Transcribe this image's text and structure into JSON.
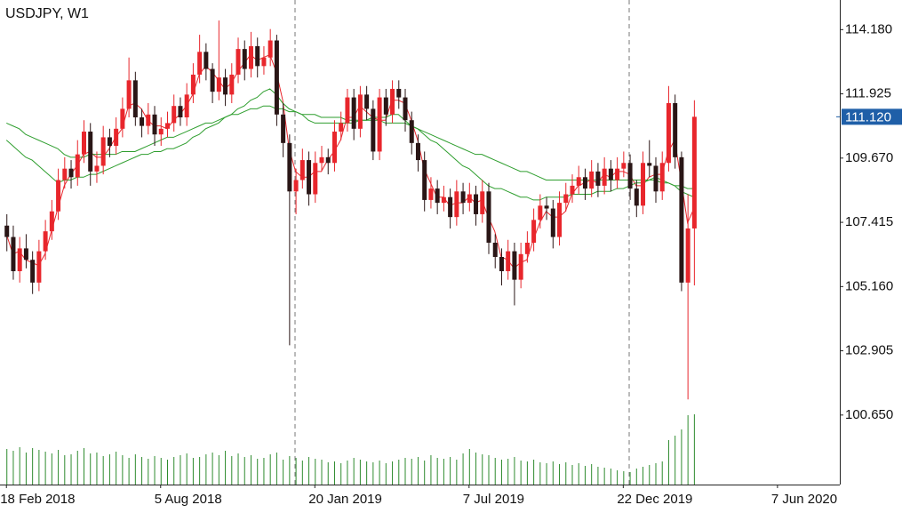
{
  "chart_data": {
    "type": "candlestick",
    "title": "USDJPY, W1",
    "xlim": [
      -1,
      129.7
    ],
    "xticks": [
      {
        "value": 0,
        "label": "18 Feb 2018"
      },
      {
        "value": 24,
        "label": "5 Aug 2018"
      },
      {
        "value": 48,
        "label": "20 Jan 2019"
      },
      {
        "value": 72,
        "label": "7 Jul 2019"
      },
      {
        "value": 96,
        "label": "22 Dec 2019"
      },
      {
        "value": 120,
        "label": "7 Jun 2020"
      }
    ],
    "ylim": [
      98.21,
      115.22
    ],
    "yticks": [
      {
        "value": 114.18,
        "label": "114.180"
      },
      111.925,
      {
        "value": 109.67,
        "label": "109.670"
      },
      107.415,
      {
        "value": 105.16,
        "label": "105.160"
      },
      102.905,
      {
        "value": 100.65,
        "label": "100.650"
      }
    ],
    "up_color": "#e8262c",
    "down_color": "#2a1616",
    "open": [
      107.3,
      106.9,
      105.7,
      106.5,
      106.1,
      105.3,
      106.4,
      107.1,
      107.8,
      108.9,
      109.3,
      109.0,
      109.8,
      110.6,
      109.2,
      109.4,
      110.4,
      110.1,
      110.7,
      111.4,
      112.4,
      111.1,
      110.8,
      111.2,
      110.5,
      110.7,
      110.9,
      111.5,
      111.1,
      111.9,
      112.6,
      113.4,
      112.8,
      112.0,
      112.5,
      111.9,
      112.6,
      113.5,
      112.8,
      113.6,
      112.9,
      113.2,
      113.8,
      111.2,
      110.2,
      108.5,
      108.9,
      109.6,
      108.4,
      109.5,
      109.7,
      109.5,
      110.6,
      110.9,
      111.8,
      110.7,
      111.9,
      111.4,
      109.9,
      111.8,
      111.2,
      112.1,
      111.8,
      111.0,
      110.2,
      109.6,
      108.2,
      108.6,
      108.1,
      108.3,
      107.6,
      108.5,
      108.1,
      108.4,
      107.7,
      108.5,
      106.7,
      106.2,
      105.7,
      106.4,
      105.4,
      106.3,
      106.7,
      107.5,
      108.0,
      107.9,
      106.9,
      108.1,
      108.4,
      108.7,
      109.0,
      108.6,
      109.2,
      108.7,
      109.3,
      108.9,
      109.3,
      109.5,
      108.6,
      108.0,
      109.5,
      109.4,
      108.5,
      109.5,
      111.6,
      109.7,
      105.3,
      107.2
    ],
    "high": [
      107.7,
      107.3,
      106.9,
      107.0,
      106.4,
      106.8,
      107.5,
      108.2,
      109.3,
      109.7,
      109.6,
      110.3,
      111.0,
      110.9,
      109.9,
      110.8,
      110.7,
      111.1,
      111.8,
      113.2,
      112.7,
      111.4,
      111.6,
      111.5,
      111.1,
      111.3,
      111.9,
      111.8,
      112.3,
      113.0,
      114.0,
      113.7,
      113.0,
      114.5,
      112.8,
      113.0,
      113.9,
      113.8,
      114.1,
      113.9,
      113.6,
      114.2,
      114.0,
      111.6,
      110.5,
      109.3,
      110.0,
      109.9,
      109.9,
      110.1,
      110.0,
      111.0,
      111.3,
      112.1,
      112.1,
      112.2,
      112.2,
      111.7,
      112.1,
      112.1,
      112.4,
      112.4,
      112.1,
      111.3,
      110.5,
      109.9,
      109.0,
      108.9,
      108.7,
      108.6,
      108.9,
      108.8,
      108.8,
      108.7,
      108.9,
      108.8,
      107.0,
      106.5,
      106.8,
      106.7,
      106.7,
      107.1,
      107.9,
      108.4,
      108.3,
      108.2,
      108.5,
      108.8,
      109.1,
      109.4,
      109.3,
      109.6,
      109.5,
      109.7,
      109.6,
      109.7,
      109.9,
      109.8,
      108.9,
      109.9,
      110.3,
      109.7,
      109.9,
      112.2,
      111.9,
      109.9,
      108.4,
      111.7
    ],
    "low": [
      106.4,
      105.4,
      105.3,
      105.8,
      104.9,
      105.0,
      106.1,
      106.8,
      107.5,
      108.6,
      108.6,
      108.7,
      109.5,
      108.7,
      108.8,
      109.1,
      109.7,
      109.8,
      110.4,
      111.1,
      110.8,
      110.4,
      110.5,
      110.1,
      110.1,
      110.4,
      110.6,
      110.8,
      110.8,
      111.6,
      112.3,
      112.4,
      111.6,
      111.7,
      111.5,
      111.6,
      112.3,
      112.4,
      112.5,
      112.5,
      112.6,
      112.9,
      110.8,
      109.7,
      103.1,
      107.7,
      108.6,
      108.0,
      108.1,
      109.2,
      109.1,
      109.2,
      110.3,
      110.6,
      110.3,
      110.4,
      111.0,
      109.6,
      109.6,
      110.8,
      110.9,
      111.4,
      110.6,
      109.8,
      109.2,
      107.8,
      107.9,
      107.7,
      107.8,
      107.2,
      107.3,
      107.7,
      107.8,
      107.3,
      107.4,
      106.3,
      105.8,
      105.2,
      105.4,
      104.5,
      105.1,
      106.0,
      106.4,
      107.2,
      107.5,
      106.5,
      106.6,
      107.8,
      108.1,
      108.4,
      108.2,
      108.3,
      108.3,
      108.4,
      108.5,
      108.6,
      109.0,
      108.2,
      107.6,
      107.7,
      109.0,
      108.1,
      108.2,
      109.2,
      109.3,
      105.0,
      101.2,
      105.2
    ],
    "close": [
      106.9,
      105.7,
      106.5,
      106.1,
      105.3,
      106.4,
      107.1,
      107.8,
      108.9,
      109.3,
      109.0,
      109.8,
      110.6,
      109.2,
      109.4,
      110.4,
      110.1,
      110.7,
      111.4,
      112.4,
      111.1,
      110.8,
      111.2,
      110.5,
      110.7,
      110.9,
      111.5,
      111.1,
      111.9,
      112.6,
      113.4,
      112.8,
      112.0,
      112.5,
      111.9,
      112.6,
      113.5,
      112.8,
      113.6,
      112.9,
      113.2,
      113.8,
      111.2,
      110.2,
      108.5,
      108.9,
      109.6,
      108.4,
      109.5,
      109.7,
      109.5,
      110.6,
      110.9,
      111.8,
      110.7,
      111.9,
      111.4,
      109.9,
      111.8,
      111.2,
      112.1,
      111.8,
      111.0,
      110.2,
      109.6,
      108.2,
      108.6,
      108.1,
      108.3,
      107.6,
      108.5,
      108.1,
      108.4,
      107.7,
      108.5,
      106.7,
      106.2,
      105.7,
      106.4,
      105.4,
      106.3,
      106.7,
      107.5,
      108.0,
      107.9,
      106.9,
      108.1,
      108.4,
      108.7,
      109.0,
      108.6,
      109.2,
      108.7,
      109.3,
      108.9,
      109.3,
      109.5,
      108.6,
      108.0,
      109.5,
      109.4,
      108.5,
      109.5,
      111.6,
      109.7,
      105.3,
      107.2,
      111.12
    ],
    "volume_color": "#2e8b2e",
    "volume_lim": [
      0,
      100
    ],
    "volume": [
      40,
      38,
      42,
      36,
      41,
      39,
      37,
      35,
      39,
      33,
      34,
      38,
      41,
      35,
      36,
      32,
      34,
      37,
      33,
      30,
      34,
      31,
      29,
      32,
      30,
      28,
      31,
      33,
      35,
      30,
      31,
      34,
      36,
      33,
      38,
      32,
      35,
      31,
      33,
      29,
      30,
      34,
      36,
      28,
      32,
      30,
      27,
      31,
      29,
      28,
      25,
      26,
      24,
      27,
      30,
      28,
      26,
      25,
      27,
      24,
      26,
      28,
      30,
      29,
      31,
      27,
      33,
      30,
      29,
      31,
      28,
      35,
      40,
      36,
      34,
      33,
      30,
      28,
      29,
      31,
      27,
      26,
      28,
      25,
      24,
      26,
      23,
      25,
      22,
      24,
      21,
      23,
      20,
      19,
      18,
      16,
      15,
      14,
      18,
      20,
      22,
      24,
      26,
      50,
      55,
      62,
      78,
      79
    ],
    "series": [
      {
        "color": "#e8262c",
        "values": [
          107.0,
          106.3,
          106.4,
          106.1,
          106.0,
          105.9,
          106.3,
          107.1,
          107.9,
          108.7,
          109.1,
          109.4,
          109.8,
          109.9,
          109.7,
          109.7,
          110.0,
          110.4,
          110.7,
          111.5,
          111.6,
          111.4,
          111.0,
          110.8,
          110.8,
          110.7,
          111.0,
          111.2,
          111.5,
          111.9,
          112.6,
          112.9,
          112.7,
          112.4,
          112.1,
          112.3,
          112.7,
          113.0,
          113.3,
          113.1,
          113.2,
          113.3,
          112.7,
          111.7,
          110.0,
          109.2,
          109.0,
          109.0,
          109.2,
          109.2,
          109.6,
          109.9,
          110.3,
          111.1,
          111.1,
          111.5,
          111.3,
          111.1,
          111.0,
          111.0,
          111.7,
          111.7,
          111.6,
          111.0,
          110.3,
          109.3,
          108.8,
          108.3,
          108.3,
          108.0,
          108.1,
          108.1,
          108.3,
          108.1,
          108.2,
          107.6,
          107.1,
          106.2,
          106.1,
          105.8,
          106.0,
          106.1,
          106.8,
          107.4,
          107.8,
          107.6,
          107.6,
          107.8,
          108.4,
          108.7,
          108.8,
          108.9,
          108.8,
          109.1,
          109.0,
          109.2,
          109.2,
          109.1,
          108.7,
          108.7,
          109.0,
          109.1,
          109.1,
          109.9,
          110.3,
          108.9,
          107.4,
          107.9
        ]
      },
      {
        "color": "#2e9e2e",
        "values": [
          110.3,
          110.1,
          109.9,
          109.7,
          109.6,
          109.4,
          109.2,
          109.0,
          108.8,
          108.9,
          108.9,
          109.0,
          109.0,
          109.1,
          109.1,
          109.2,
          109.3,
          109.4,
          109.5,
          109.6,
          109.7,
          109.8,
          109.8,
          109.9,
          109.9,
          110.0,
          110.0,
          110.1,
          110.2,
          110.4,
          110.5,
          110.7,
          110.8,
          110.9,
          111.1,
          111.2,
          111.4,
          111.5,
          111.7,
          111.8,
          112.0,
          112.1,
          111.9,
          111.6,
          111.4,
          111.3,
          111.2,
          111.0,
          110.9,
          110.9,
          110.9,
          110.9,
          110.9,
          110.9,
          110.9,
          111.0,
          111.0,
          111.1,
          111.1,
          111.1,
          111.2,
          111.2,
          111.0,
          110.8,
          110.7,
          110.5,
          110.3,
          110.2,
          110.0,
          109.8,
          109.6,
          109.4,
          109.3,
          109.1,
          108.9,
          108.7,
          108.6,
          108.6,
          108.5,
          108.4,
          108.3,
          108.3,
          108.2,
          108.2,
          108.3,
          108.3,
          108.3,
          108.3,
          108.4,
          108.4,
          108.4,
          108.4,
          108.5,
          108.5,
          108.5,
          108.6,
          108.6,
          108.7,
          108.8,
          108.8,
          108.9,
          109.0,
          108.9,
          108.8,
          108.7,
          108.5,
          108.4,
          108.3
        ]
      },
      {
        "color": "#2e9e2e",
        "values": [
          110.9,
          110.8,
          110.7,
          110.5,
          110.4,
          110.3,
          110.2,
          110.1,
          110.0,
          109.8,
          109.7,
          109.7,
          109.7,
          109.8,
          109.8,
          109.8,
          109.8,
          109.8,
          109.9,
          109.9,
          109.9,
          110.0,
          110.1,
          110.2,
          110.3,
          110.4,
          110.4,
          110.5,
          110.6,
          110.7,
          110.8,
          110.9,
          110.9,
          111.0,
          111.1,
          111.2,
          111.2,
          111.3,
          111.4,
          111.4,
          111.5,
          111.5,
          111.4,
          111.4,
          111.3,
          111.3,
          111.2,
          111.2,
          111.2,
          111.1,
          111.1,
          111.1,
          111.1,
          111.0,
          111.0,
          111.0,
          111.0,
          111.0,
          111.0,
          110.9,
          110.9,
          110.9,
          110.9,
          110.8,
          110.7,
          110.6,
          110.5,
          110.4,
          110.3,
          110.2,
          110.1,
          110.0,
          109.9,
          109.8,
          109.8,
          109.7,
          109.6,
          109.5,
          109.4,
          109.3,
          109.2,
          109.2,
          109.1,
          109.0,
          108.9,
          108.9,
          108.9,
          108.9,
          108.9,
          108.9,
          108.9,
          108.9,
          108.9,
          108.9,
          108.9,
          108.9,
          108.9,
          108.9,
          108.9,
          108.9,
          108.9,
          108.9,
          108.8,
          108.8,
          108.7,
          108.7,
          108.6,
          108.6
        ]
      }
    ],
    "last_price": {
      "value": 111.12,
      "label": "111.120"
    },
    "last_price_color": "#1f5fa8"
  }
}
